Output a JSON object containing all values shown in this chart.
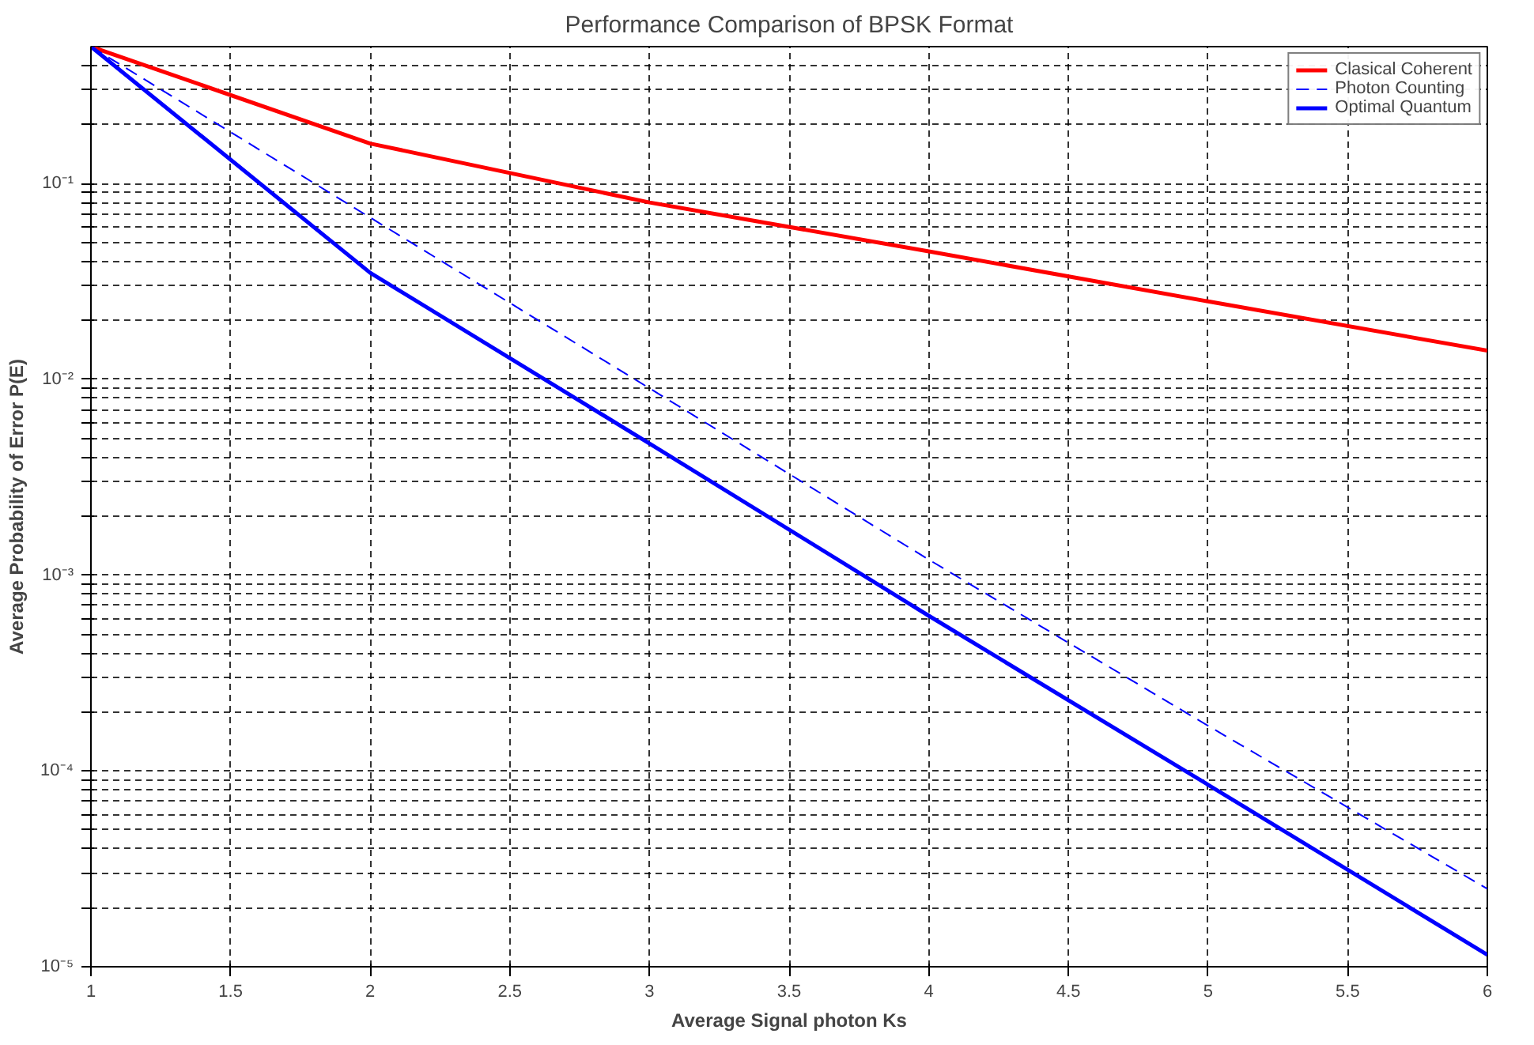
{
  "chart_data": {
    "type": "line",
    "title": "Performance Comparison of BPSK Format",
    "xlabel": "Average Signal photon Ks",
    "ylabel": "Average Probability of Error P(E)",
    "x": [
      1,
      2,
      3,
      4,
      5,
      6
    ],
    "log": "y",
    "grid": true,
    "legend": "top right",
    "line_style": "solid",
    "marker": "none",
    "xlim": [
      1,
      6
    ],
    "ylim": [
      1e-05,
      0.5
    ],
    "xticks": [
      1,
      1.5,
      2,
      2.5,
      3,
      3.5,
      4,
      4.5,
      5,
      5.5,
      6
    ],
    "yticks": [
      {
        "value": 1e-05,
        "label": "10⁻⁵"
      },
      {
        "value": 2e-05,
        "label": null
      },
      {
        "value": 3e-05,
        "label": null
      },
      {
        "value": 4e-05,
        "label": null
      },
      {
        "value": 5e-05,
        "label": null
      },
      {
        "value": 6e-05,
        "label": null
      },
      {
        "value": 7e-05,
        "label": null
      },
      {
        "value": 8e-05,
        "label": null
      },
      {
        "value": 9e-05,
        "label": null
      },
      {
        "value": 0.0001,
        "label": "10⁻⁴"
      },
      {
        "value": 0.0002,
        "label": null
      },
      {
        "value": 0.0003,
        "label": null
      },
      {
        "value": 0.0004,
        "label": null
      },
      {
        "value": 0.0005,
        "label": null
      },
      {
        "value": 0.0006,
        "label": null
      },
      {
        "value": 0.0007,
        "label": null
      },
      {
        "value": 0.0008,
        "label": null
      },
      {
        "value": 0.0009,
        "label": null
      },
      {
        "value": 0.001,
        "label": "10⁻³"
      },
      {
        "value": 0.002,
        "label": null
      },
      {
        "value": 0.003,
        "label": null
      },
      {
        "value": 0.004,
        "label": null
      },
      {
        "value": 0.005,
        "label": null
      },
      {
        "value": 0.006,
        "label": null
      },
      {
        "value": 0.007,
        "label": null
      },
      {
        "value": 0.008,
        "label": null
      },
      {
        "value": 0.009,
        "label": null
      },
      {
        "value": 0.01,
        "label": "10⁻²"
      },
      {
        "value": 0.02,
        "label": null
      },
      {
        "value": 0.03,
        "label": null
      },
      {
        "value": 0.04,
        "label": null
      },
      {
        "value": 0.05,
        "label": null
      },
      {
        "value": 0.06,
        "label": null
      },
      {
        "value": 0.07,
        "label": null
      },
      {
        "value": 0.08,
        "label": null
      },
      {
        "value": 0.09,
        "label": null
      },
      {
        "value": 0.1,
        "label": "10⁻¹"
      },
      {
        "value": 0.2,
        "label": null
      },
      {
        "value": 0.3,
        "label": null
      },
      {
        "value": 0.4,
        "label": null
      }
    ],
    "series": [
      {
        "name": "Clasical Coherent",
        "color": "#ff0000",
        "values": [
          0.5,
          0.16,
          0.08,
          0.045,
          0.025,
          0.014
        ]
      },
      {
        "name": "Photon Counting",
        "color": "#0000ff",
        "line_style": "dashed",
        "values": [
          0.5,
          0.067,
          0.009,
          0.0012,
          0.00017,
          2.5e-05
        ]
      },
      {
        "name": "Optimal Quantum",
        "color": "#0000ff",
        "values": [
          0.5,
          0.035,
          0.0047,
          0.00062,
          8.5e-05,
          1.15e-05
        ]
      }
    ]
  }
}
